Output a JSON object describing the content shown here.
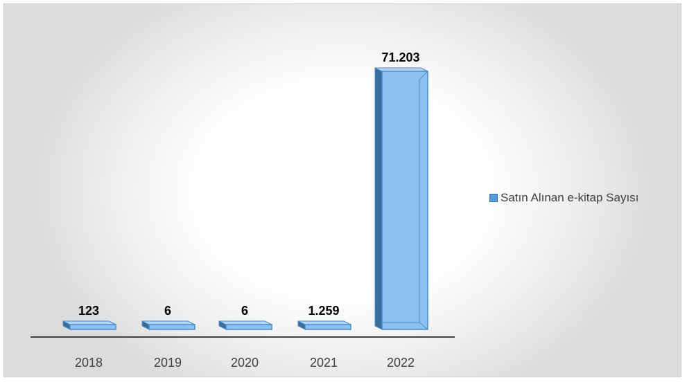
{
  "chart_data": {
    "type": "bar",
    "categories": [
      "2018",
      "2019",
      "2020",
      "2021",
      "2022"
    ],
    "series": [
      {
        "name": "Satın Alınan e-kitap Sayısı",
        "values": [
          123,
          6,
          6,
          1259,
          71203
        ]
      }
    ],
    "data_labels": [
      "123",
      "6",
      "6",
      "1.259",
      "71.203"
    ],
    "ylim": [
      0,
      71203
    ],
    "grid": false,
    "legend_position": "right",
    "colors": {
      "bar_face": "#8dc0f2",
      "bar_side": "#3a6d9c",
      "bar_top": "#b5d6f7",
      "bar_edge": "#4b8cc8",
      "axis": "#404040"
    }
  }
}
